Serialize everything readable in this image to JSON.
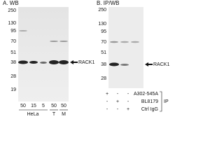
{
  "panel_a": {
    "title": "A. WB",
    "markers": [
      "250",
      "130",
      "95",
      "70",
      "51",
      "38",
      "28",
      "19"
    ],
    "target": "RACK1",
    "loads": [
      "50",
      "15",
      "5",
      "50",
      "50"
    ],
    "groups": [
      "HeLa",
      "T",
      "M"
    ]
  },
  "panel_b": {
    "title": "B. IP/WB",
    "markers": [
      "250",
      "130",
      "95",
      "70",
      "51",
      "38",
      "28"
    ],
    "target": "RACK1",
    "rows": [
      {
        "label": "A302-545A",
        "signs": [
          "+",
          "-",
          "-"
        ]
      },
      {
        "label": "BL8179",
        "signs": [
          "-",
          "+",
          "-"
        ]
      },
      {
        "label": "Ctrl IgG",
        "signs": [
          "-",
          "-",
          "+"
        ]
      }
    ],
    "ip": "IP"
  }
}
